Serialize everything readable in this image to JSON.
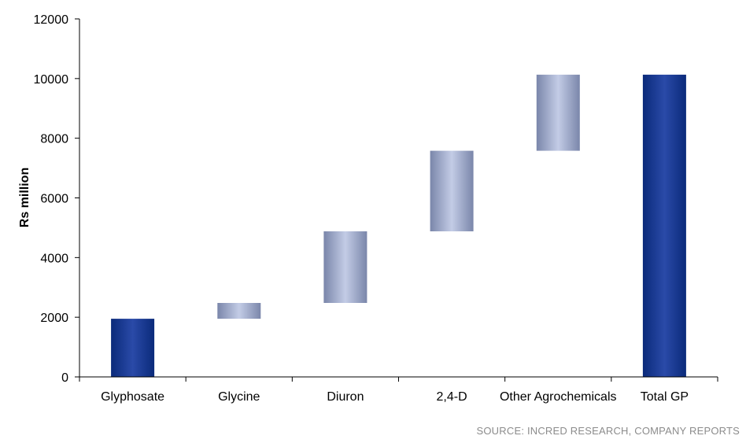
{
  "source": "SOURCE: INCRED RESEARCH, COMPANY REPORTS",
  "chart_data": {
    "type": "bar",
    "subtype": "waterfall",
    "title": "",
    "xlabel": "",
    "ylabel": "Rs million",
    "ylim": [
      0,
      12000
    ],
    "yticks": [
      0,
      2000,
      4000,
      6000,
      8000,
      10000,
      12000
    ],
    "grid": false,
    "categories": [
      "Glyphosate",
      "Glycine",
      "Diuron",
      "2,4-D",
      "Other Agrochemicals",
      "Total GP"
    ],
    "bars": [
      {
        "category": "Glyphosate",
        "base": 0,
        "top": 1950,
        "kind": "total"
      },
      {
        "category": "Glycine",
        "base": 1950,
        "top": 2480,
        "kind": "increment"
      },
      {
        "category": "Diuron",
        "base": 2480,
        "top": 4880,
        "kind": "increment"
      },
      {
        "category": "2,4-D",
        "base": 4880,
        "top": 7580,
        "kind": "increment"
      },
      {
        "category": "Other Agrochemicals",
        "base": 7580,
        "top": 10130,
        "kind": "increment"
      },
      {
        "category": "Total GP",
        "base": 0,
        "top": 10130,
        "kind": "total"
      }
    ],
    "colors": {
      "total": "#0a2a7a",
      "total_light": "#2a4aa8",
      "increment_edge": "#7a86aa",
      "increment_mid": "#c3cce6",
      "axis": "#000000"
    }
  }
}
